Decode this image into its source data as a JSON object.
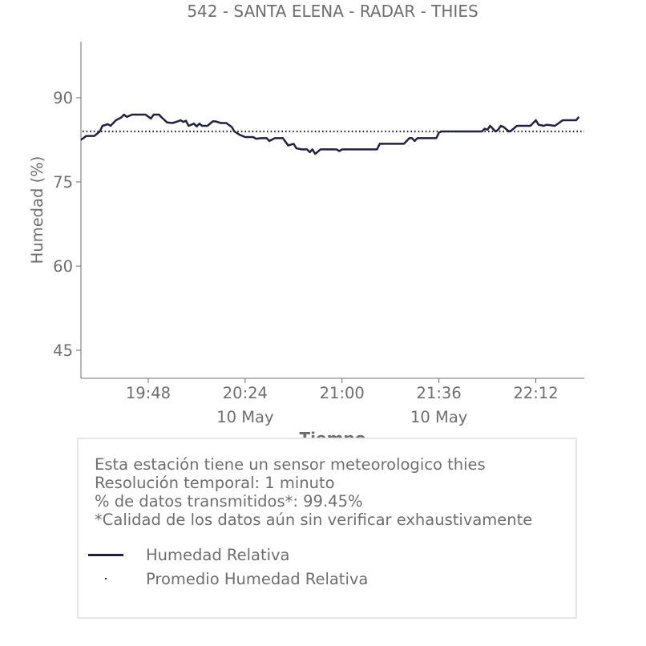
{
  "chart_data": {
    "type": "line",
    "title": "542 - SANTA ELENA - RADAR - THIES",
    "xlabel": "Tiempo",
    "ylabel": "Humedad (%)",
    "ylim": [
      40,
      100
    ],
    "xlim": [
      "19:23",
      "22:30"
    ],
    "y_ticks": [
      45,
      60,
      75,
      90
    ],
    "x_ticks": [
      {
        "time": "19:48",
        "label": "19:48",
        "sublabel": ""
      },
      {
        "time": "20:24",
        "label": "20:24",
        "sublabel": "10 May"
      },
      {
        "time": "21:00",
        "label": "21:00",
        "sublabel": ""
      },
      {
        "time": "21:36",
        "label": "21:36",
        "sublabel": "10 May"
      },
      {
        "time": "22:12",
        "label": "22:12",
        "sublabel": ""
      }
    ],
    "grid": false,
    "legend_position": "bottom",
    "series": [
      {
        "name": "Humedad Relativa",
        "style": "solid",
        "color": "#22223f",
        "points": [
          [
            "19:23",
            82.5
          ],
          [
            "19:25",
            83.2
          ],
          [
            "19:28",
            83.2
          ],
          [
            "19:30",
            84.0
          ],
          [
            "19:31",
            85.0
          ],
          [
            "19:33",
            85.3
          ],
          [
            "19:34",
            85.0
          ],
          [
            "19:36",
            86.0
          ],
          [
            "19:38",
            86.5
          ],
          [
            "19:39",
            87.0
          ],
          [
            "19:40",
            86.6
          ],
          [
            "19:42",
            87.0
          ],
          [
            "19:47",
            87.0
          ],
          [
            "19:49",
            86.3
          ],
          [
            "19:50",
            87.0
          ],
          [
            "19:52",
            87.0
          ],
          [
            "19:53",
            86.5
          ],
          [
            "19:55",
            85.6
          ],
          [
            "19:57",
            85.5
          ],
          [
            "19:59",
            85.8
          ],
          [
            "20:00",
            86.0
          ],
          [
            "20:01",
            85.7
          ],
          [
            "20:02",
            85.9
          ],
          [
            "20:03",
            85.0
          ],
          [
            "20:05",
            85.4
          ],
          [
            "20:06",
            84.9
          ],
          [
            "20:07",
            85.4
          ],
          [
            "20:08",
            85.0
          ],
          [
            "20:10",
            85.0
          ],
          [
            "20:12",
            85.8
          ],
          [
            "20:13",
            85.8
          ],
          [
            "20:15",
            85.5
          ],
          [
            "20:17",
            85.5
          ],
          [
            "20:19",
            84.8
          ],
          [
            "20:20",
            84.0
          ],
          [
            "20:22",
            83.4
          ],
          [
            "20:24",
            83.0
          ],
          [
            "20:27",
            83.0
          ],
          [
            "20:28",
            82.7
          ],
          [
            "20:30",
            82.8
          ],
          [
            "20:32",
            82.8
          ],
          [
            "20:33",
            82.3
          ],
          [
            "20:35",
            82.8
          ],
          [
            "20:38",
            82.8
          ],
          [
            "20:40",
            81.5
          ],
          [
            "20:42",
            81.8
          ],
          [
            "20:43",
            81.0
          ],
          [
            "20:45",
            80.8
          ],
          [
            "20:47",
            80.8
          ],
          [
            "20:48",
            80.3
          ],
          [
            "20:49",
            80.8
          ],
          [
            "20:50",
            80.0
          ],
          [
            "20:52",
            80.8
          ],
          [
            "20:55",
            80.8
          ],
          [
            "20:58",
            80.8
          ],
          [
            "20:59",
            80.5
          ],
          [
            "21:00",
            80.8
          ],
          [
            "21:13",
            80.8
          ],
          [
            "21:14",
            81.8
          ],
          [
            "21:23",
            81.8
          ],
          [
            "21:25",
            82.8
          ],
          [
            "21:26",
            82.8
          ],
          [
            "21:27",
            82.3
          ],
          [
            "21:28",
            82.8
          ],
          [
            "21:35",
            82.8
          ],
          [
            "21:36",
            83.8
          ],
          [
            "21:37",
            84.0
          ],
          [
            "21:52",
            84.0
          ],
          [
            "21:53",
            84.5
          ],
          [
            "21:54",
            84.3
          ],
          [
            "21:55",
            85.0
          ],
          [
            "21:57",
            84.0
          ],
          [
            "21:58",
            84.3
          ],
          [
            "21:59",
            85.0
          ],
          [
            "22:00",
            84.8
          ],
          [
            "22:02",
            84.0
          ],
          [
            "22:03",
            84.2
          ],
          [
            "22:05",
            85.0
          ],
          [
            "22:10",
            85.0
          ],
          [
            "22:11",
            85.5
          ],
          [
            "22:12",
            86.0
          ],
          [
            "22:13",
            85.2
          ],
          [
            "22:15",
            85.0
          ],
          [
            "22:16",
            85.2
          ],
          [
            "22:19",
            85.0
          ],
          [
            "22:20",
            85.3
          ],
          [
            "22:22",
            86.0
          ],
          [
            "22:27",
            86.0
          ],
          [
            "22:28",
            86.6
          ]
        ]
      },
      {
        "name": "Promedio Humedad Relativa",
        "style": "dotted",
        "color": "#22223f",
        "constant": 84.0
      }
    ]
  },
  "info": {
    "lines": [
      "Esta estación tiene un sensor meteorologico thies",
      "Resolución temporal: 1 minuto",
      "% de datos transmitidos*: 99.45%",
      "*Calidad de los datos aún sin verificar exhaustivamente"
    ]
  },
  "legend": {
    "line_label": "Humedad Relativa",
    "mean_label": "Promedio Humedad Relativa"
  }
}
